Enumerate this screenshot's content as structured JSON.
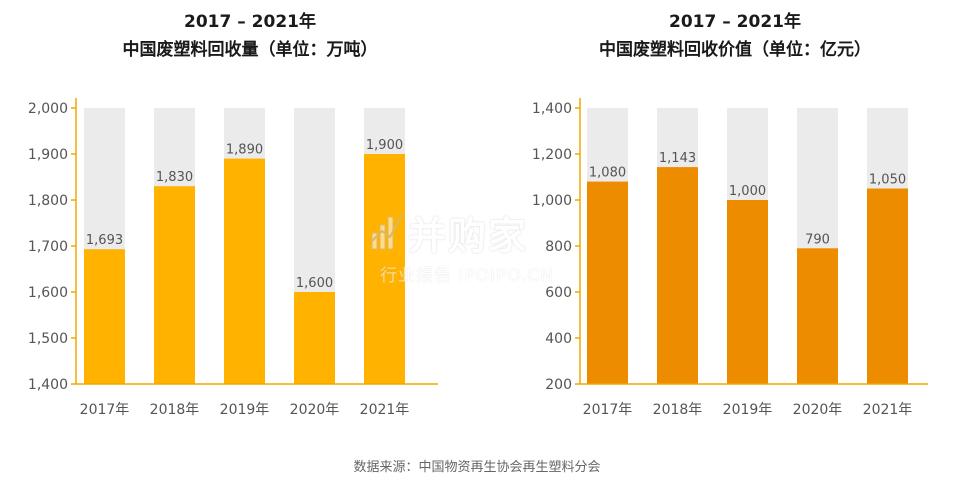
{
  "chart_data": [
    {
      "type": "bar",
      "title": "2017 – 2021年",
      "subtitle": "中国废塑料回收量（单位：万吨）",
      "categories": [
        "2017年",
        "2018年",
        "2019年",
        "2020年",
        "2021年"
      ],
      "values": [
        1693,
        1830,
        1890,
        1600,
        1900
      ],
      "value_labels": [
        "1,693",
        "1,830",
        "1,890",
        "1,600",
        "1,900"
      ],
      "ylim": [
        1400,
        2000
      ],
      "yticks": [
        1400,
        1500,
        1600,
        1700,
        1800,
        1900,
        2000
      ],
      "ytick_labels": [
        "1,400",
        "1,500",
        "1,600",
        "1,700",
        "1,800",
        "1,900",
        "2,000"
      ],
      "bar_color": "#FFB300",
      "background_bar_color": "#EBEBEB",
      "axis_color": "#F0A800"
    },
    {
      "type": "bar",
      "title": "2017 – 2021年",
      "subtitle": "中国废塑料回收价值（单位：亿元）",
      "categories": [
        "2017年",
        "2018年",
        "2019年",
        "2020年",
        "2021年"
      ],
      "values": [
        1080,
        1143,
        1000,
        790,
        1050
      ],
      "value_labels": [
        "1,080",
        "1,143",
        "1,000",
        "790",
        "1,050"
      ],
      "ylim": [
        200,
        1400
      ],
      "yticks": [
        200,
        400,
        600,
        800,
        1000,
        1200,
        1400
      ],
      "ytick_labels": [
        "200",
        "400",
        "600",
        "800",
        "1,000",
        "1,200",
        "1,400"
      ],
      "bar_color": "#EE8C00",
      "background_bar_color": "#EBEBEB",
      "axis_color": "#F0A800"
    }
  ],
  "source": "数据来源：中国物资再生协会再生塑料分会",
  "watermark": {
    "main": "并购家",
    "sub": "行业报告 IPOIPO.CN"
  }
}
